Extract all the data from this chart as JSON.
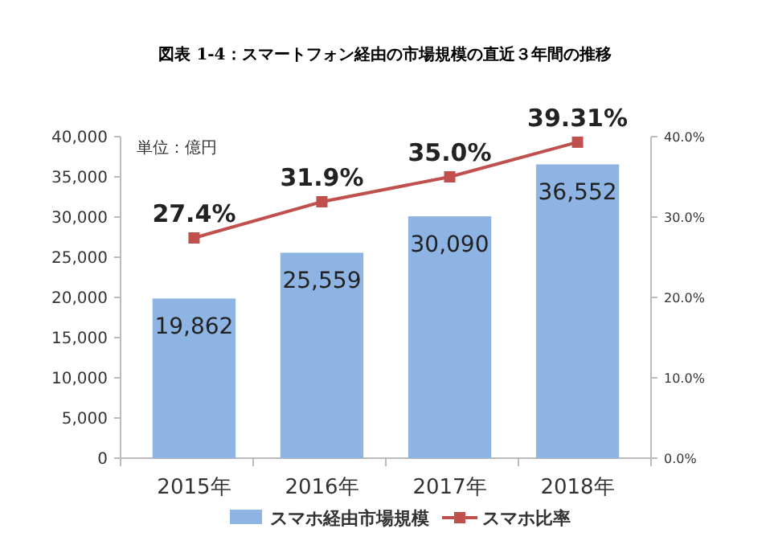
{
  "chart_data": {
    "type": "bar",
    "title": "図表 1-4：スマートフォン経由の市場規模の直近３年間の推移",
    "categories": [
      "2015年",
      "2016年",
      "2017年",
      "2018年"
    ],
    "series": [
      {
        "name": "スマホ経由市場規模",
        "color": "#8db4e2",
        "values": [
          19862,
          25559,
          30090,
          36552
        ],
        "value_labels": [
          "19,862",
          "25,559",
          "30,090",
          "36,552"
        ]
      },
      {
        "name": "スマホ比率",
        "type": "line",
        "axis": "y2",
        "color": "#c0504d",
        "marker": "square",
        "values": [
          27.4,
          31.9,
          35.0,
          39.31
        ],
        "value_labels": [
          "27.4%",
          "31.9%",
          "35.0%",
          "39.31%"
        ]
      }
    ],
    "annotations": [
      "単位：億円"
    ],
    "ylim": [
      0,
      40000
    ],
    "yticks": [
      {
        "value": 0,
        "label": "0"
      },
      {
        "value": 5000,
        "label": "5,000"
      },
      {
        "value": 10000,
        "label": "10,000"
      },
      {
        "value": 15000,
        "label": "15,000"
      },
      {
        "value": 20000,
        "label": "20,000"
      },
      {
        "value": 25000,
        "label": "25,000"
      },
      {
        "value": 30000,
        "label": "30,000"
      },
      {
        "value": 35000,
        "label": "35,000"
      },
      {
        "value": 40000,
        "label": "40,000"
      }
    ],
    "y2lim": [
      0,
      40
    ],
    "y2ticks": [
      {
        "value": 0,
        "label": "0.0%"
      },
      {
        "value": 10,
        "label": "10.0%"
      },
      {
        "value": 20,
        "label": "20.0%"
      },
      {
        "value": 30,
        "label": "30.0%"
      },
      {
        "value": 40,
        "label": "40.0%"
      }
    ],
    "legend": "bottom",
    "grid": false
  }
}
